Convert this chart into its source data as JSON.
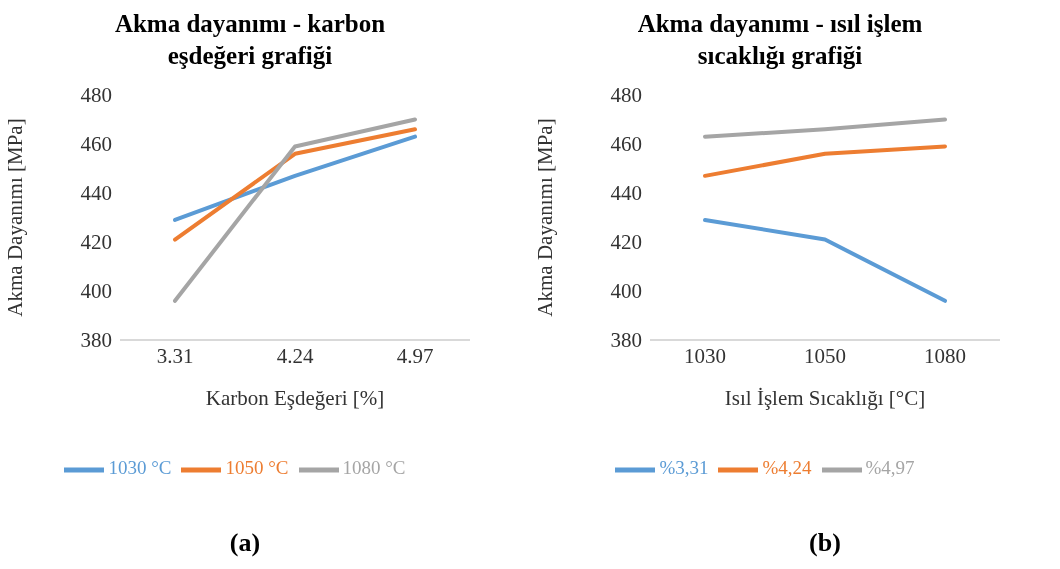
{
  "chart_data": [
    {
      "type": "line",
      "title": "Akma dayanımı - karbon eşdeğeri grafiği",
      "xlabel": "Karbon Eşdeğeri [%]",
      "ylabel": "Akma Dayanımı [MPa]",
      "categories": [
        "3.31",
        "4.24",
        "4.97"
      ],
      "series": [
        {
          "name": "1030 °C",
          "color": "#5b9bd5",
          "values": [
            429,
            447,
            463
          ]
        },
        {
          "name": "1050 °C",
          "color": "#ed7d31",
          "values": [
            421,
            456,
            466
          ]
        },
        {
          "name": "1080 °C",
          "color": "#a5a5a5",
          "values": [
            396,
            459,
            470
          ]
        }
      ],
      "ylim": [
        380,
        480
      ],
      "yticks": [
        380,
        400,
        420,
        440,
        460,
        480
      ],
      "legend": "bottom",
      "annotations": [
        "(a)"
      ]
    },
    {
      "type": "line",
      "title": "Akma dayanımı - ısıl işlem sıcaklığı grafiği",
      "xlabel": "Isıl İşlem Sıcaklığı [°C]",
      "ylabel": "Akma Dayanımı [MPa]",
      "categories": [
        "1030",
        "1050",
        "1080"
      ],
      "series": [
        {
          "name": "%3,31",
          "color": "#5b9bd5",
          "values": [
            429,
            421,
            396
          ]
        },
        {
          "name": "%4,24",
          "color": "#ed7d31",
          "values": [
            447,
            456,
            459
          ]
        },
        {
          "name": "%4,97",
          "color": "#a5a5a5",
          "values": [
            463,
            466,
            470
          ]
        }
      ],
      "ylim": [
        380,
        480
      ],
      "yticks": [
        380,
        400,
        420,
        440,
        460,
        480
      ],
      "legend": "bottom",
      "annotations": [
        "(b)"
      ]
    }
  ]
}
